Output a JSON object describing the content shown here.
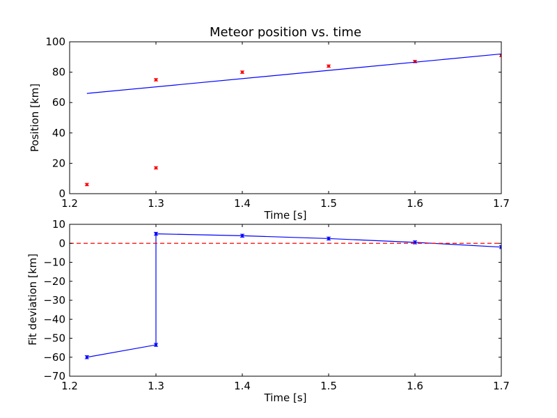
{
  "chart_data": [
    {
      "type": "scatter",
      "title": "Meteor position vs. time",
      "xlabel": "Time [s]",
      "ylabel": "Position [km]",
      "xlim": [
        1.2,
        1.7
      ],
      "ylim": [
        0,
        100
      ],
      "xticks": [
        "1.2",
        "1.3",
        "1.4",
        "1.5",
        "1.6",
        "1.7"
      ],
      "yticks": [
        "0",
        "20",
        "40",
        "60",
        "80",
        "100"
      ],
      "grid": false,
      "series": [
        {
          "kind": "errorbar-points",
          "color": "#ff0000",
          "x": [
            1.22,
            1.3,
            1.3,
            1.4,
            1.5,
            1.6,
            1.7
          ],
          "y": [
            6,
            75,
            17,
            80,
            84,
            87,
            91
          ],
          "err": [
            0.8,
            0.8,
            0.8,
            0.8,
            0.8,
            0.8,
            0.8
          ]
        },
        {
          "kind": "fit-line",
          "color": "#0000ff",
          "x": [
            1.22,
            1.7
          ],
          "y": [
            66,
            92
          ]
        }
      ]
    },
    {
      "type": "line",
      "title": "",
      "xlabel": "Time [s]",
      "ylabel": "Fit deviation [km]",
      "xlim": [
        1.2,
        1.7
      ],
      "ylim": [
        -70,
        10
      ],
      "xticks": [
        "1.2",
        "1.3",
        "1.4",
        "1.5",
        "1.6",
        "1.7"
      ],
      "yticks": [
        "10",
        "0",
        "−10",
        "−20",
        "−30",
        "−40",
        "−50",
        "−60",
        "−70"
      ],
      "grid": false,
      "series": [
        {
          "kind": "errorbar-line",
          "color": "#0000ff",
          "x": [
            1.22,
            1.3,
            1.3,
            1.4,
            1.5,
            1.6,
            1.7
          ],
          "y": [
            -60,
            -53.5,
            5,
            4,
            2.5,
            0.5,
            -2
          ],
          "err": [
            0.8,
            0.8,
            0.8,
            0.8,
            0.8,
            0.8,
            0.8
          ]
        },
        {
          "kind": "reference-line",
          "color": "#ff0000",
          "style": "dashed",
          "x": [
            1.2,
            1.7
          ],
          "y": [
            0,
            0
          ]
        }
      ]
    }
  ]
}
